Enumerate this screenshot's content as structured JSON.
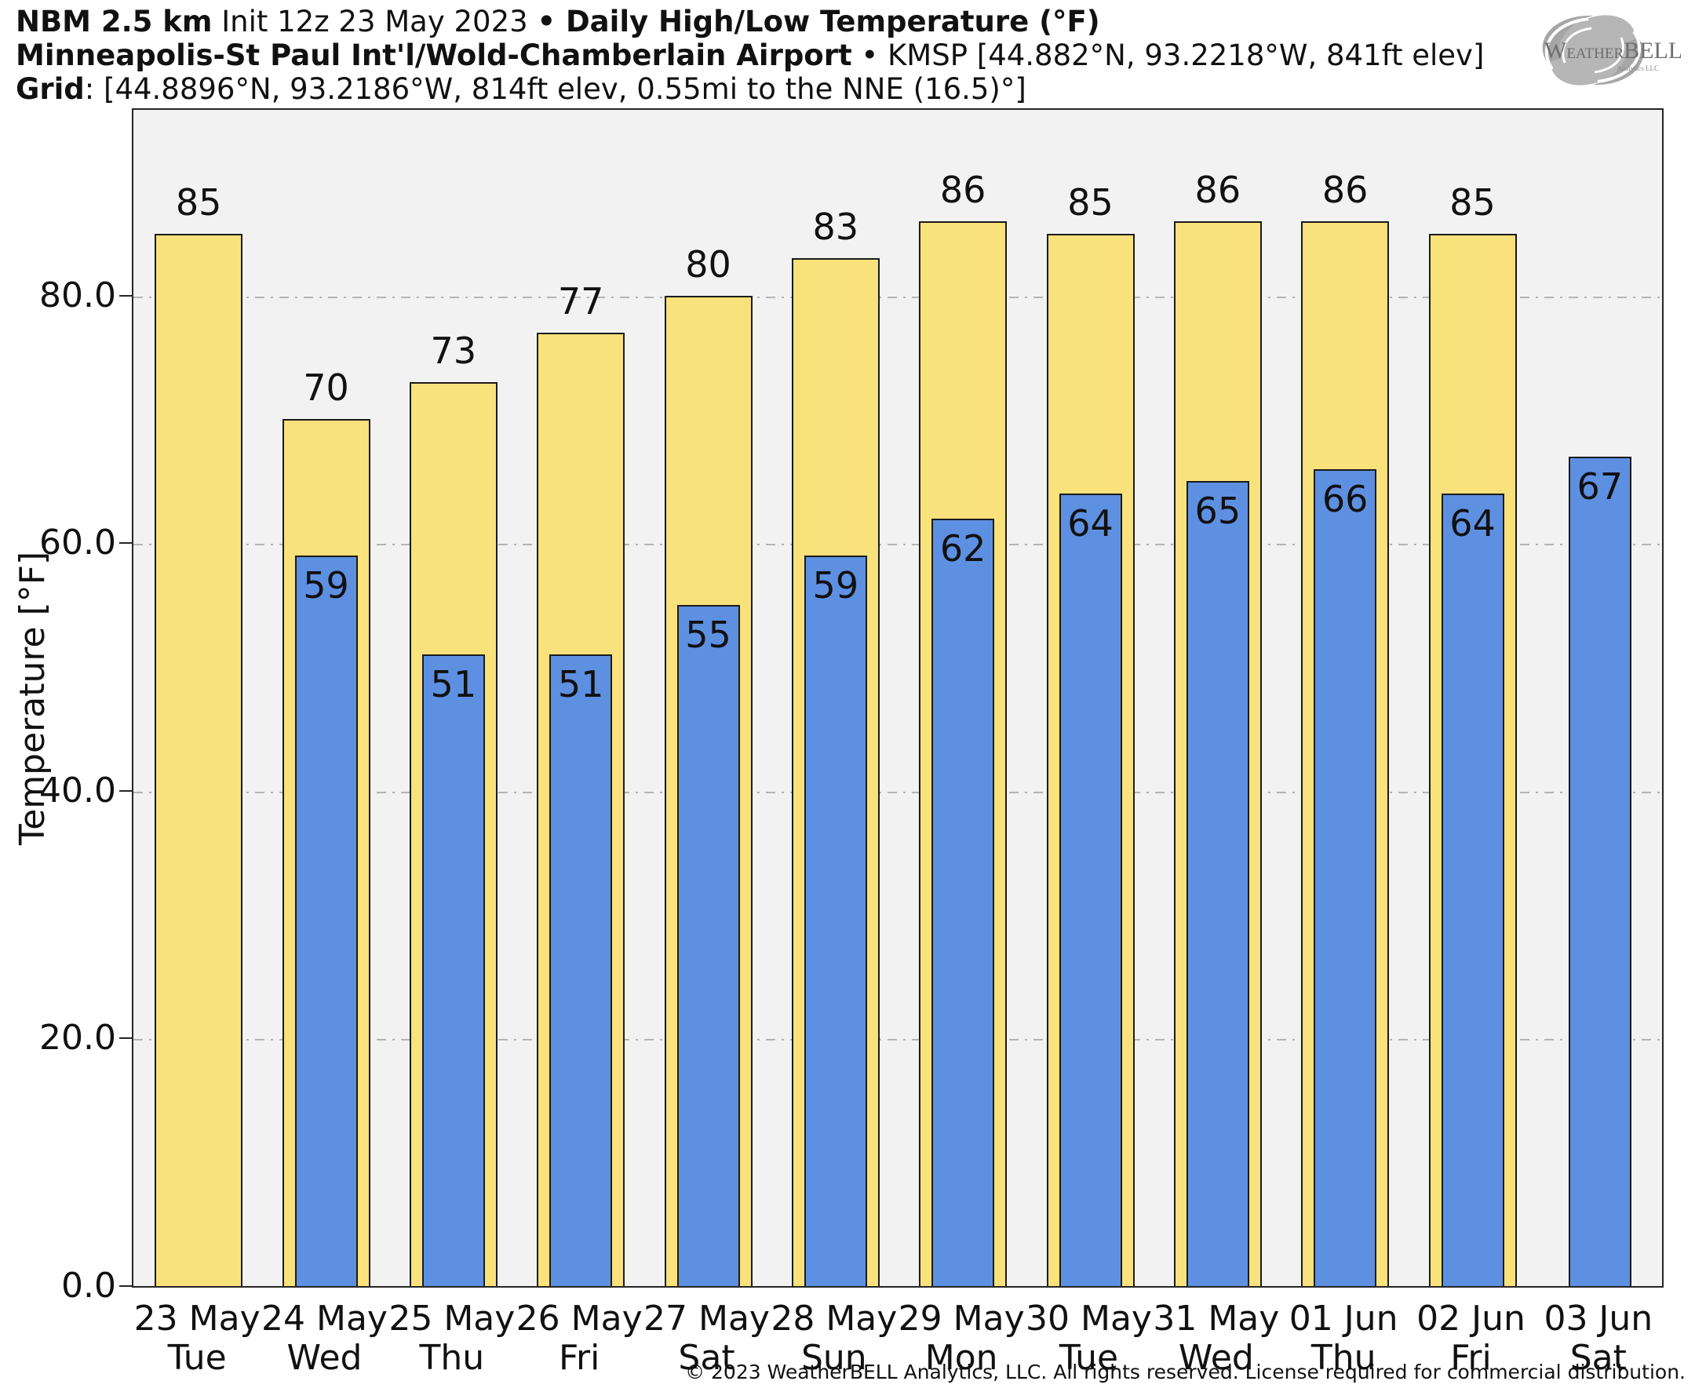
{
  "header": {
    "line1_model": "NBM 2.5 km",
    "line1_init": " Init 12z 23 May 2023 ",
    "line1_product": "• Daily High/Low Temperature (°F)",
    "line2_station": "Minneapolis-St Paul Int'l/Wold-Chamberlain Airport",
    "line2_rest": " • KMSP [44.882°N, 93.2218°W, 841ft elev]",
    "line3_label": "Grid",
    "line3_rest": ": [44.8896°N, 93.2186°W, 814ft elev, 0.55mi to the NNE (16.5)°]"
  },
  "logo": {
    "name": "WeatherBELL",
    "text_weather": "Weather",
    "text_bell": "BELL",
    "text_sub": "Analytics LLC"
  },
  "chart_data": {
    "type": "bar",
    "title": "Daily High/Low Temperature (°F)",
    "xlabel": "",
    "ylabel": "Temperature [°F]",
    "ylim": [
      0,
      95
    ],
    "yticks": [
      0,
      20,
      40,
      60,
      80
    ],
    "ytick_labels": [
      "0.0",
      "20.0",
      "40.0",
      "60.0",
      "80.0"
    ],
    "grid": true,
    "grid_style": "dash-dot",
    "legend": "none",
    "categories": [
      {
        "date": "23 May",
        "dow": "Tue"
      },
      {
        "date": "24 May",
        "dow": "Wed"
      },
      {
        "date": "25 May",
        "dow": "Thu"
      },
      {
        "date": "26 May",
        "dow": "Fri"
      },
      {
        "date": "27 May",
        "dow": "Sat"
      },
      {
        "date": "28 May",
        "dow": "Sun"
      },
      {
        "date": "29 May",
        "dow": "Mon"
      },
      {
        "date": "30 May",
        "dow": "Tue"
      },
      {
        "date": "31 May",
        "dow": "Wed"
      },
      {
        "date": "01 Jun",
        "dow": "Thu"
      },
      {
        "date": "02 Jun",
        "dow": "Fri"
      },
      {
        "date": "03 Jun",
        "dow": "Sat"
      }
    ],
    "series": [
      {
        "name": "Daily High",
        "color": "#f9e17c",
        "values": [
          85,
          70,
          73,
          77,
          80,
          83,
          86,
          85,
          86,
          86,
          85,
          null
        ]
      },
      {
        "name": "Daily Low",
        "color": "#5e90e2",
        "values": [
          null,
          59,
          51,
          51,
          55,
          59,
          62,
          64,
          65,
          66,
          64,
          67
        ]
      }
    ]
  },
  "colors": {
    "high_fill": "#f9e17c",
    "low_fill": "#5e90e2",
    "bar_border": "#1a1a1a",
    "plot_bg": "#f2f2f2",
    "page_bg": "#ffffff",
    "grid_color": "#b4b4b4",
    "axis_color": "#262626",
    "logo_gray": "#949494"
  },
  "footer": "© 2023 WeatherBELL Analytics, LLC. All rights reserved. License required for commercial distribution."
}
